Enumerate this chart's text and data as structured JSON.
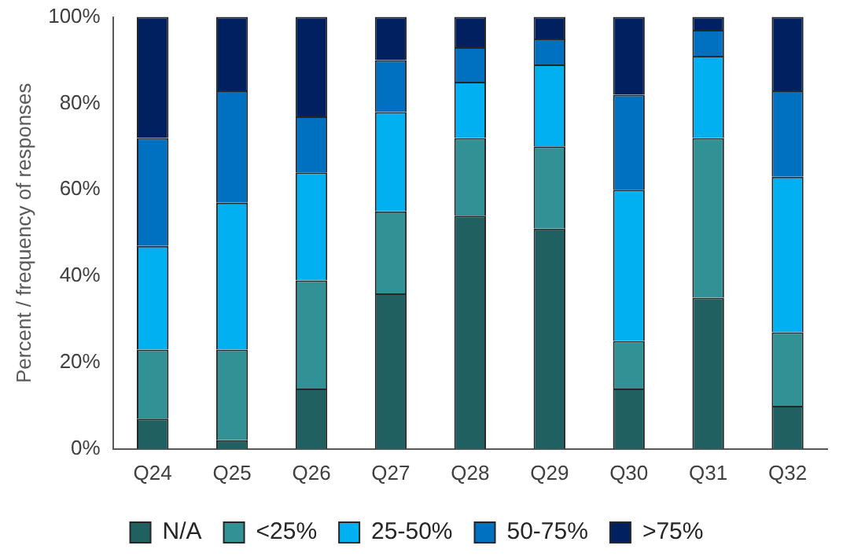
{
  "chart_data": {
    "type": "bar",
    "stacked": true,
    "ylabel": "Percent / frequency of responses",
    "categories": [
      "Q24",
      "Q25",
      "Q26",
      "Q27",
      "Q28",
      "Q29",
      "Q30",
      "Q31",
      "Q32"
    ],
    "series": [
      {
        "name": "N/A",
        "color": "#206060",
        "values": [
          7,
          2,
          14,
          36,
          54,
          51,
          14,
          35,
          10
        ]
      },
      {
        "name": "<25%",
        "color": "#319195",
        "values": [
          16,
          21,
          25,
          19,
          18,
          19,
          11,
          37,
          17
        ]
      },
      {
        "name": "25-50%",
        "color": "#00b0f0",
        "values": [
          24,
          34,
          25,
          23,
          13,
          19,
          35,
          19,
          36
        ]
      },
      {
        "name": "50-75%",
        "color": "#0070c0",
        "values": [
          25,
          26,
          13,
          12,
          8,
          6,
          22,
          6,
          20
        ]
      },
      {
        "name": ">75%",
        "color": "#002060",
        "values": [
          28,
          17,
          23,
          10,
          7,
          5,
          18,
          3,
          17
        ]
      }
    ],
    "ylim": [
      0,
      100
    ],
    "yticks": [
      {
        "value": 0,
        "label": "0%"
      },
      {
        "value": 20,
        "label": "20%"
      },
      {
        "value": 40,
        "label": "40%"
      },
      {
        "value": 60,
        "label": "60%"
      },
      {
        "value": 80,
        "label": "80%"
      },
      {
        "value": 100,
        "label": "100%"
      }
    ],
    "grid": false,
    "legend": "bottom"
  }
}
